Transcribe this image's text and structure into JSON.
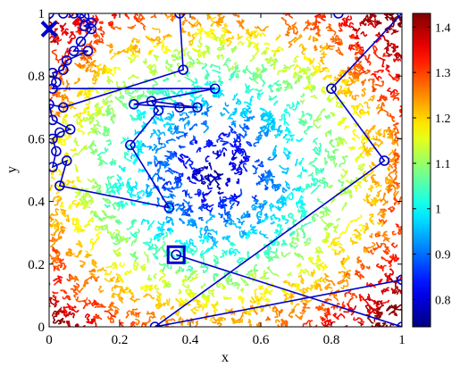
{
  "chart_data": {
    "type": "scatter",
    "title": "",
    "xlabel": "x",
    "ylabel": "y",
    "xlim": [
      0,
      1
    ],
    "ylim": [
      0,
      1
    ],
    "x_ticks": [
      "0",
      "0.2",
      "0.4",
      "0.6",
      "0.8",
      "1"
    ],
    "y_ticks": [
      "0",
      "0.2",
      "0.4",
      "0.6",
      "0.8",
      "1"
    ],
    "background": {
      "type": "contour",
      "description_value_trend": "minimum near center (~0.47, 0.50), rising toward corners",
      "center": [
        0.47,
        0.5
      ],
      "min_value": 0.75,
      "max_value": 1.43
    },
    "colorbar": {
      "colormap": "jet",
      "range": [
        0.74,
        1.43
      ],
      "ticks": [
        "0.8",
        "0.9",
        "1",
        "1.1",
        "1.2",
        "1.3",
        "1.4"
      ]
    },
    "path": {
      "color": "#0000cc",
      "marker": "circle",
      "points": [
        [
          0.0,
          1.0
        ],
        [
          0.04,
          1.0
        ],
        [
          0.07,
          1.0
        ],
        [
          0.09,
          1.0
        ],
        [
          0.1,
          0.99
        ],
        [
          0.12,
          0.97
        ],
        [
          0.1,
          0.96
        ],
        [
          0.12,
          0.95
        ],
        [
          0.09,
          0.91
        ],
        [
          0.07,
          0.88
        ],
        [
          0.11,
          0.88
        ],
        [
          0.05,
          0.85
        ],
        [
          0.04,
          0.82
        ],
        [
          0.01,
          0.81
        ],
        [
          0.02,
          0.78
        ],
        [
          0.01,
          0.76
        ],
        [
          0.47,
          0.76
        ],
        [
          0.24,
          0.71
        ],
        [
          0.37,
          0.7
        ],
        [
          0.42,
          0.7
        ],
        [
          0.29,
          0.72
        ],
        [
          0.31,
          0.69
        ],
        [
          0.23,
          0.58
        ],
        [
          0.34,
          0.38
        ],
        [
          0.03,
          0.45
        ],
        [
          0.05,
          0.53
        ],
        [
          0.01,
          0.51
        ],
        [
          0.02,
          0.56
        ],
        [
          0.01,
          0.6
        ],
        [
          0.03,
          0.62
        ],
        [
          0.06,
          0.63
        ],
        [
          0.01,
          0.66
        ],
        [
          0.0,
          0.71
        ],
        [
          0.04,
          0.7
        ],
        [
          0.38,
          0.82
        ],
        [
          0.37,
          1.0
        ],
        [
          0.82,
          1.0
        ],
        [
          1.0,
          1.0
        ],
        [
          0.8,
          0.76
        ],
        [
          0.95,
          0.53
        ],
        [
          0.3,
          0.0
        ],
        [
          1.0,
          0.15
        ],
        [
          1.0,
          0.0
        ],
        [
          0.36,
          0.23
        ]
      ],
      "start_marker": {
        "shape": "x",
        "at": [
          0.0,
          0.95
        ]
      },
      "end_marker": {
        "shape": "square",
        "at": [
          0.36,
          0.23
        ]
      }
    }
  }
}
